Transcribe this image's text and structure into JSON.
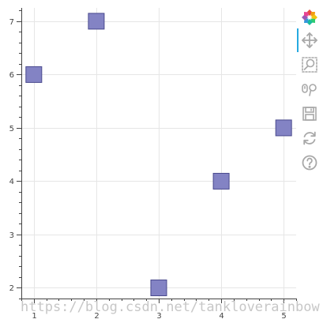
{
  "chart_data": {
    "type": "scatter",
    "marker": "square",
    "x": [
      1,
      2,
      3,
      4,
      5
    ],
    "y": [
      6,
      7,
      2,
      4,
      5
    ],
    "xlim": [
      0.8,
      5.2
    ],
    "ylim": [
      1.8,
      7.25
    ],
    "xticks": [
      "1",
      "2",
      "3",
      "4",
      "5"
    ],
    "yticks": [
      "2",
      "3",
      "4",
      "5",
      "6",
      "7"
    ],
    "grid": true,
    "marker_fill": "#8383c4",
    "marker_stroke": "#4a4a8e",
    "grid_color": "#e6e6e6",
    "axis_color": "#444444"
  },
  "watermark": "https://blog.csdn.net/tankloverainbow",
  "toolbar": {
    "tools": [
      {
        "name": "bokeh-logo",
        "icon": "bokeh-logo-icon",
        "active": false
      },
      {
        "name": "pan",
        "icon": "pan-icon",
        "active": true
      },
      {
        "name": "box-zoom",
        "icon": "box-zoom-icon",
        "active": false
      },
      {
        "name": "wheel-zoom",
        "icon": "wheel-zoom-icon",
        "active": false
      },
      {
        "name": "save",
        "icon": "save-icon",
        "active": false
      },
      {
        "name": "reset",
        "icon": "reset-icon",
        "active": false
      },
      {
        "name": "help",
        "icon": "help-icon",
        "active": false
      }
    ],
    "icon_color": "#a8a8a8",
    "active_color": "#26aae1"
  }
}
